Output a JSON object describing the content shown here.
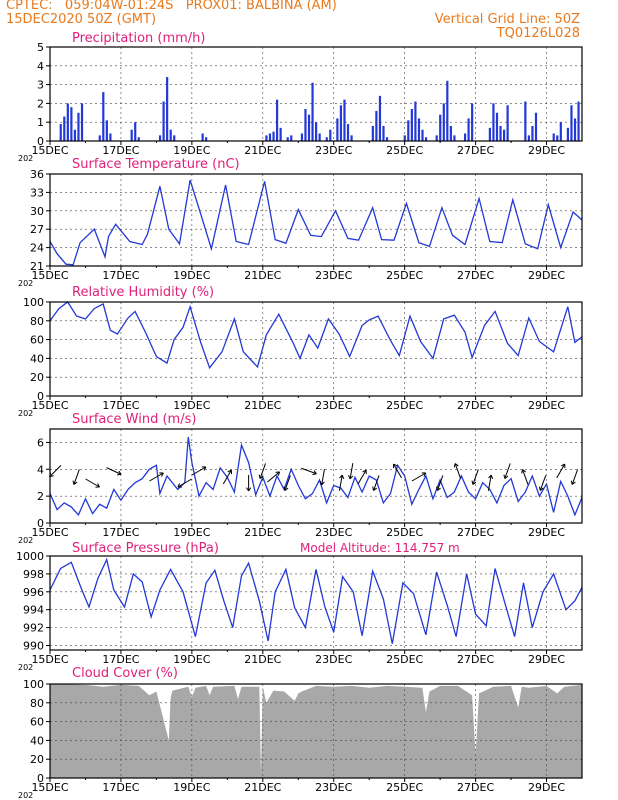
{
  "header": {
    "line1_left": "CPTEC:   059:04W-01:24S   PROX01: BALBINA (AM)",
    "line2_left": "15DEC2020 50Z (GMT)",
    "line2_right": "Vertical Grid Line: 50Z",
    "line3_right": "TQ0126L028"
  },
  "colors": {
    "header": "#e87a1e",
    "title": "#e0207a",
    "series": "#2238d8",
    "cloud": "#a8a8a8"
  },
  "x_axis": {
    "ticks": [
      {
        "day": 0,
        "label": "15DEC"
      },
      {
        "day": 2,
        "label": "17DEC"
      },
      {
        "day": 4,
        "label": "19DEC"
      },
      {
        "day": 6,
        "label": "21DEC"
      },
      {
        "day": 8,
        "label": "23DEC"
      },
      {
        "day": 10,
        "label": "25DEC"
      },
      {
        "day": 12,
        "label": "27DEC"
      },
      {
        "day": 14,
        "label": "29DEC"
      }
    ],
    "year_stub": "202"
  },
  "chart_data": [
    {
      "type": "bar",
      "title": "Precipitation  (mm/h)",
      "ylim": [
        0,
        5
      ],
      "yticks": [
        "0",
        "1",
        "2",
        "3",
        "4",
        "5"
      ],
      "grid": true,
      "x": [
        0.3,
        0.4,
        0.5,
        0.6,
        0.7,
        0.8,
        0.9,
        1.4,
        1.5,
        1.6,
        1.7,
        2.3,
        2.4,
        2.5,
        3.1,
        3.2,
        3.3,
        3.4,
        3.5,
        4.3,
        4.4,
        6.1,
        6.2,
        6.3,
        6.4,
        6.5,
        6.7,
        6.8,
        7.1,
        7.2,
        7.3,
        7.4,
        7.5,
        7.6,
        7.8,
        7.9,
        8.1,
        8.2,
        8.3,
        8.4,
        8.5,
        9.1,
        9.2,
        9.3,
        9.4,
        9.5,
        10.0,
        10.1,
        10.2,
        10.3,
        10.4,
        10.5,
        10.6,
        10.9,
        11.0,
        11.1,
        11.2,
        11.3,
        11.4,
        11.7,
        11.8,
        11.9,
        12.4,
        12.5,
        12.6,
        12.7,
        12.8,
        12.9,
        13.4,
        13.5,
        13.6,
        13.7,
        14.2,
        14.3,
        14.4,
        14.6,
        14.7,
        14.8,
        14.9
      ],
      "values": [
        0.9,
        1.3,
        2.0,
        1.8,
        0.6,
        1.5,
        2.0,
        0.3,
        2.6,
        1.1,
        0.4,
        0.6,
        1.0,
        0.2,
        0.3,
        2.1,
        3.4,
        0.6,
        0.3,
        0.4,
        0.2,
        0.3,
        0.4,
        0.5,
        2.2,
        0.7,
        0.2,
        0.3,
        0.4,
        1.7,
        1.4,
        3.1,
        1.0,
        0.4,
        0.2,
        0.6,
        1.2,
        1.9,
        2.2,
        0.9,
        0.3,
        0.8,
        1.6,
        2.4,
        0.8,
        0.2,
        0.3,
        1.1,
        1.7,
        2.1,
        1.2,
        0.6,
        0.2,
        0.3,
        1.4,
        2.0,
        3.2,
        0.8,
        0.3,
        0.4,
        1.2,
        2.0,
        0.7,
        2.0,
        1.5,
        0.8,
        0.6,
        1.9,
        2.1,
        0.3,
        0.8,
        1.5,
        0.4,
        0.3,
        1.0,
        0.7,
        1.9,
        1.2,
        2.1
      ]
    },
    {
      "type": "line",
      "title": "Surface Temperature (nC)",
      "ylim": [
        21,
        36
      ],
      "yticks": [
        "21",
        "24",
        "27",
        "30",
        "33",
        "36"
      ],
      "grid": true,
      "x": [
        0,
        0.2,
        0.45,
        0.65,
        0.85,
        1.25,
        1.55,
        1.65,
        1.85,
        2.25,
        2.6,
        2.75,
        3.1,
        3.35,
        3.65,
        3.95,
        4.25,
        4.55,
        4.95,
        5.25,
        5.6,
        6.05,
        6.35,
        6.65,
        7.0,
        7.35,
        7.65,
        8.05,
        8.4,
        8.7,
        9.1,
        9.35,
        9.7,
        10.05,
        10.4,
        10.7,
        11.05,
        11.35,
        11.7,
        12.1,
        12.4,
        12.75,
        13.05,
        13.4,
        13.75,
        14.05,
        14.4,
        14.75,
        15.0
      ],
      "values": [
        25,
        23,
        21.3,
        21.2,
        24.8,
        27,
        22.5,
        25.8,
        27.8,
        25,
        24.5,
        26.2,
        34,
        27,
        24.6,
        35,
        29.5,
        23.8,
        34.2,
        25,
        24.5,
        34.8,
        25.3,
        24.7,
        30.2,
        26,
        25.8,
        30,
        25.5,
        25.2,
        30.5,
        25.3,
        25.2,
        31.2,
        24.8,
        24.2,
        30.5,
        26,
        24.5,
        32,
        25,
        24.8,
        31.8,
        24.6,
        23.8,
        31,
        24,
        29.8,
        28.5
      ]
    },
    {
      "type": "line",
      "title": "Relative Humidity (%)",
      "ylim": [
        0,
        100
      ],
      "yticks": [
        "0",
        "20",
        "40",
        "60",
        "80",
        "100"
      ],
      "grid": true,
      "x": [
        0,
        0.25,
        0.5,
        0.75,
        1.0,
        1.25,
        1.5,
        1.7,
        1.9,
        2.2,
        2.4,
        2.7,
        3.0,
        3.3,
        3.5,
        3.75,
        3.95,
        4.25,
        4.5,
        4.85,
        5.2,
        5.45,
        5.85,
        6.1,
        6.45,
        6.85,
        7.05,
        7.3,
        7.55,
        7.85,
        8.15,
        8.45,
        8.8,
        9.0,
        9.25,
        9.6,
        9.85,
        10.15,
        10.45,
        10.8,
        11.1,
        11.4,
        11.7,
        11.9,
        12.25,
        12.55,
        12.9,
        13.2,
        13.5,
        13.8,
        14.2,
        14.6,
        14.8,
        15.0
      ],
      "values": [
        80,
        93,
        100,
        85,
        82,
        93,
        98,
        70,
        66,
        83,
        90,
        67,
        42,
        35,
        60,
        73,
        95,
        57,
        30,
        47,
        82,
        47,
        31,
        65,
        87,
        57,
        40,
        65,
        51,
        82,
        66,
        42,
        75,
        81,
        85,
        59,
        43,
        85,
        58,
        40,
        82,
        86,
        68,
        41,
        75,
        90,
        56,
        43,
        83,
        58,
        47,
        95,
        57,
        63
      ]
    },
    {
      "type": "line",
      "title": "Surface Wind (m/s)",
      "ylim": [
        0,
        7
      ],
      "yticks": [
        "0",
        "2",
        "4",
        "6"
      ],
      "grid": true,
      "x": [
        0,
        0.2,
        0.4,
        0.6,
        0.8,
        1.0,
        1.2,
        1.4,
        1.6,
        1.8,
        2.0,
        2.2,
        2.4,
        2.6,
        2.8,
        3.0,
        3.1,
        3.3,
        3.6,
        3.8,
        3.9,
        4.0,
        4.2,
        4.4,
        4.6,
        4.8,
        5.0,
        5.2,
        5.4,
        5.6,
        5.8,
        6.0,
        6.2,
        6.4,
        6.6,
        6.8,
        7.0,
        7.2,
        7.4,
        7.6,
        7.8,
        8.0,
        8.2,
        8.4,
        8.6,
        8.8,
        9.0,
        9.2,
        9.4,
        9.6,
        9.8,
        10.0,
        10.2,
        10.4,
        10.6,
        10.8,
        11.0,
        11.2,
        11.4,
        11.6,
        11.8,
        12.0,
        12.2,
        12.4,
        12.6,
        12.8,
        13.0,
        13.2,
        13.4,
        13.6,
        13.8,
        14.0,
        14.2,
        14.4,
        14.6,
        14.8,
        15.0
      ],
      "values": [
        2.2,
        1.0,
        1.5,
        1.2,
        0.6,
        1.8,
        0.7,
        1.4,
        1.1,
        2.5,
        1.7,
        2.5,
        3.0,
        3.3,
        4.0,
        4.3,
        2.2,
        3.5,
        2.5,
        3.0,
        6.4,
        4.5,
        2.0,
        3.0,
        2.5,
        4.1,
        3.4,
        2.3,
        5.8,
        4.5,
        2.1,
        3.4,
        2.0,
        3.5,
        2.5,
        4.0,
        2.8,
        1.8,
        2.2,
        3.2,
        1.5,
        2.8,
        2.6,
        1.9,
        3.4,
        2.3,
        3.5,
        3.2,
        1.5,
        2.2,
        4.3,
        3.5,
        1.4,
        2.5,
        3.5,
        1.8,
        3.2,
        1.9,
        2.3,
        3.5,
        2.3,
        1.8,
        3.0,
        2.5,
        1.5,
        2.8,
        3.3,
        1.6,
        2.3,
        3.5,
        2.0,
        2.9,
        0.8,
        3.1,
        2.0,
        0.6,
        1.9
      ]
    },
    {
      "type": "line",
      "title": "Surface Pressure (hPa)",
      "ylim": [
        989.5,
        1000
      ],
      "yticks": [
        "990",
        "992",
        "994",
        "996",
        "998",
        "1000"
      ],
      "grid": true,
      "x": [
        0,
        0.3,
        0.6,
        0.9,
        1.1,
        1.35,
        1.6,
        1.8,
        2.1,
        2.35,
        2.6,
        2.85,
        3.1,
        3.4,
        3.75,
        4.1,
        4.4,
        4.65,
        4.9,
        5.15,
        5.4,
        5.6,
        5.9,
        6.15,
        6.35,
        6.65,
        6.9,
        7.2,
        7.5,
        7.75,
        8.0,
        8.25,
        8.55,
        8.8,
        9.1,
        9.4,
        9.65,
        9.95,
        10.25,
        10.6,
        10.9,
        11.2,
        11.45,
        11.75,
        12.0,
        12.3,
        12.55,
        12.8,
        13.1,
        13.35,
        13.6,
        13.9,
        14.2,
        14.55,
        14.8,
        15.0
      ],
      "values": [
        996.2,
        998.6,
        999.3,
        996.2,
        994.3,
        997.5,
        999.6,
        996.2,
        994.3,
        998.0,
        997.1,
        993.2,
        996.2,
        998.5,
        996.0,
        991.0,
        997.0,
        998.4,
        995.0,
        992.0,
        997.8,
        999.2,
        995.0,
        990.5,
        996.0,
        998.5,
        994.2,
        992.0,
        998.5,
        994.3,
        991.5,
        997.7,
        996.0,
        991.1,
        998.3,
        995.2,
        990.2,
        997.0,
        995.8,
        991.2,
        998.2,
        994.5,
        991.0,
        998.0,
        993.5,
        992.2,
        998.6,
        995.1,
        991.0,
        997.0,
        992.0,
        996.0,
        998.0,
        994.0,
        995.0,
        996.5
      ]
    },
    {
      "type": "area",
      "title": "Cloud Cover (%)",
      "ylim": [
        0,
        100
      ],
      "yticks": [
        "0",
        "20",
        "40",
        "60",
        "80",
        "100"
      ],
      "grid": true,
      "x": [
        0,
        1.0,
        1.5,
        2.0,
        2.5,
        2.8,
        3.0,
        3.35,
        3.4,
        3.45,
        3.9,
        4.0,
        4.1,
        4.4,
        4.5,
        4.6,
        5.2,
        5.3,
        5.4,
        5.9,
        5.95,
        6.0,
        6.1,
        6.3,
        6.6,
        6.9,
        7.0,
        7.1,
        7.5,
        8.0,
        8.5,
        9.0,
        9.5,
        10.0,
        10.5,
        10.6,
        10.7,
        11.0,
        11.5,
        11.9,
        12.0,
        12.1,
        12.5,
        13.0,
        13.2,
        13.3,
        13.5,
        14.0,
        14.3,
        14.5,
        15.0
      ],
      "values": [
        100,
        99,
        97,
        99,
        98,
        88,
        92,
        40,
        85,
        93,
        97,
        86,
        96,
        98,
        88,
        97,
        98,
        84,
        97,
        97,
        5,
        97,
        80,
        93,
        92,
        82,
        90,
        92,
        98,
        97,
        98,
        96,
        98,
        97,
        96,
        70,
        92,
        98,
        98,
        88,
        25,
        90,
        97,
        98,
        75,
        97,
        96,
        98,
        90,
        97,
        99
      ]
    }
  ],
  "annotations": {
    "model_altitude": "Model Altitude: 114.757  m"
  },
  "wind_vectors": [
    {
      "day": 0.15,
      "dir_deg": 225
    },
    {
      "day": 0.75,
      "dir_deg": 200
    },
    {
      "day": 1.2,
      "dir_deg": 120
    },
    {
      "day": 1.8,
      "dir_deg": 115
    },
    {
      "day": 3.0,
      "dir_deg": 60
    },
    {
      "day": 3.8,
      "dir_deg": 240
    },
    {
      "day": 4.2,
      "dir_deg": 60
    },
    {
      "day": 5.0,
      "dir_deg": 30
    },
    {
      "day": 5.6,
      "dir_deg": 180
    },
    {
      "day": 6.0,
      "dir_deg": 200
    },
    {
      "day": 6.3,
      "dir_deg": 50
    },
    {
      "day": 6.7,
      "dir_deg": 200
    },
    {
      "day": 7.3,
      "dir_deg": 110
    },
    {
      "day": 7.7,
      "dir_deg": 190
    },
    {
      "day": 8.2,
      "dir_deg": 10
    },
    {
      "day": 8.5,
      "dir_deg": 190
    },
    {
      "day": 8.8,
      "dir_deg": 30
    },
    {
      "day": 9.2,
      "dir_deg": 200
    },
    {
      "day": 9.8,
      "dir_deg": 330
    },
    {
      "day": 10.4,
      "dir_deg": 60
    },
    {
      "day": 11.0,
      "dir_deg": 200
    },
    {
      "day": 11.5,
      "dir_deg": 340
    },
    {
      "day": 12.0,
      "dir_deg": 200
    },
    {
      "day": 12.4,
      "dir_deg": 10
    },
    {
      "day": 12.9,
      "dir_deg": 200
    },
    {
      "day": 13.4,
      "dir_deg": 340
    },
    {
      "day": 13.9,
      "dir_deg": 200
    },
    {
      "day": 14.4,
      "dir_deg": 30
    },
    {
      "day": 14.8,
      "dir_deg": 200
    }
  ]
}
